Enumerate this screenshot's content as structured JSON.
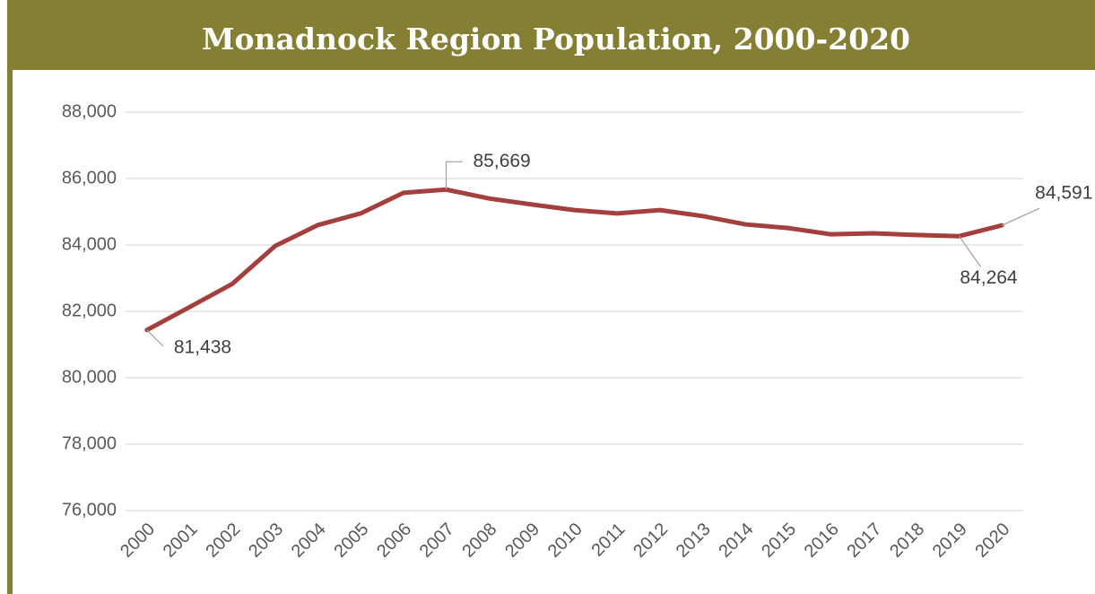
{
  "chart_data": {
    "type": "line",
    "title": "Monadnock Region Population, 2000-2020",
    "categories": [
      "2000",
      "2001",
      "2002",
      "2003",
      "2004",
      "2005",
      "2006",
      "2007",
      "2008",
      "2009",
      "2010",
      "2011",
      "2012",
      "2013",
      "2014",
      "2015",
      "2016",
      "2017",
      "2018",
      "2019",
      "2020"
    ],
    "series": [
      {
        "name": "Population",
        "color": "#a3403e",
        "values": [
          81438,
          82130,
          82830,
          83970,
          84600,
          84950,
          85570,
          85669,
          85400,
          85220,
          85050,
          84950,
          85050,
          84870,
          84620,
          84510,
          84320,
          84350,
          84300,
          84264,
          84591
        ],
        "value_labels": [
          "81,438",
          null,
          null,
          null,
          null,
          null,
          null,
          "85,669",
          null,
          null,
          null,
          null,
          null,
          null,
          null,
          null,
          null,
          null,
          null,
          "84,264",
          "84,591"
        ]
      }
    ],
    "ylim": [
      76000,
      88000
    ],
    "yticks": [
      {
        "value": 76000,
        "label": "76,000"
      },
      {
        "value": 78000,
        "label": "78,000"
      },
      {
        "value": 80000,
        "label": "80,000"
      },
      {
        "value": 82000,
        "label": "82,000"
      },
      {
        "value": 84000,
        "label": "84,000"
      },
      {
        "value": 86000,
        "label": "86,000"
      },
      {
        "value": 88000,
        "label": "88,000"
      }
    ],
    "grid": true
  }
}
